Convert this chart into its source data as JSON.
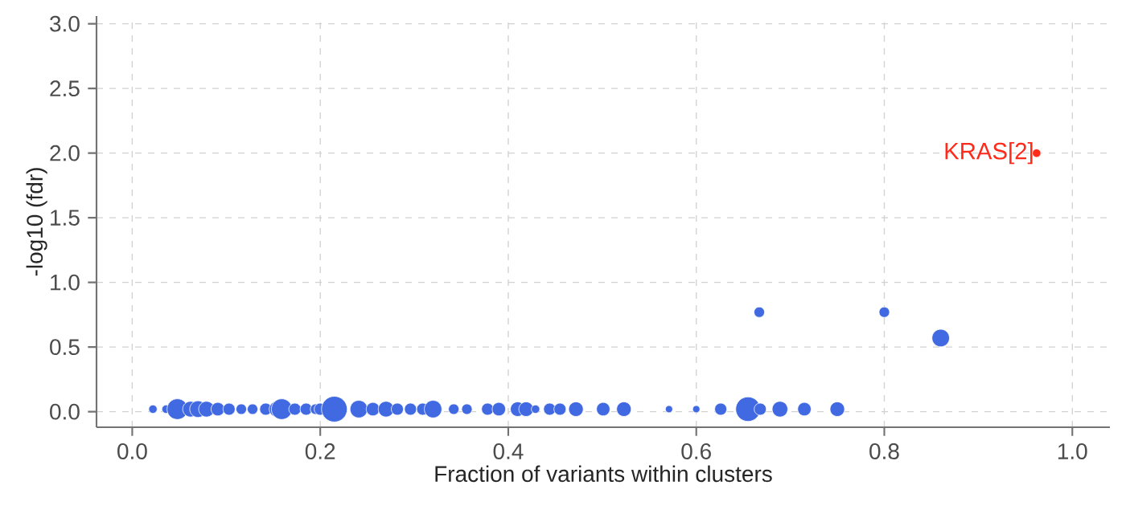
{
  "chart_data": {
    "type": "bubble",
    "xlabel": "Fraction of variants within clusters",
    "ylabel": "-log10 (fdr)",
    "xlim": [
      -0.038,
      1.04
    ],
    "ylim": [
      -0.12,
      3.06
    ],
    "xticks": [
      {
        "value": 0,
        "label": "0.0"
      },
      {
        "value": 0.2,
        "label": "0.2"
      },
      {
        "value": 0.4,
        "label": "0.4"
      },
      {
        "value": 0.6,
        "label": "0.6"
      },
      {
        "value": 0.8,
        "label": "0.8"
      },
      {
        "value": 1,
        "label": "1.0"
      }
    ],
    "yticks": [
      {
        "value": 0,
        "label": "0.0"
      },
      {
        "value": 0.5,
        "label": "0.5"
      },
      {
        "value": 1,
        "label": "1.0"
      },
      {
        "value": 1.5,
        "label": "1.5"
      },
      {
        "value": 2,
        "label": "2.0"
      },
      {
        "value": 2.5,
        "label": "2.5"
      },
      {
        "value": 3,
        "label": "3.0"
      }
    ],
    "grid": true,
    "series": [
      {
        "color": "#4169e1",
        "x": [
          0.022,
          0.036,
          0.048,
          0.062,
          0.07,
          0.079,
          0.091,
          0.103,
          0.116,
          0.128,
          0.142,
          0.154,
          0.159,
          0.173,
          0.185,
          0.195,
          0.2,
          0.215,
          0.241,
          0.256,
          0.27,
          0.282,
          0.296,
          0.309,
          0.32,
          0.342,
          0.356,
          0.378,
          0.39,
          0.41,
          0.419,
          0.429,
          0.444,
          0.455,
          0.472,
          0.501,
          0.523,
          0.571,
          0.6,
          0.626,
          0.655,
          0.668,
          0.689,
          0.715,
          0.75,
          0.667,
          0.8,
          0.86
        ],
        "values": [
          0.02,
          0.02,
          0.02,
          0.02,
          0.02,
          0.02,
          0.02,
          0.02,
          0.02,
          0.02,
          0.02,
          0.02,
          0.02,
          0.02,
          0.02,
          0.02,
          0.02,
          0.02,
          0.02,
          0.02,
          0.02,
          0.02,
          0.02,
          0.02,
          0.02,
          0.02,
          0.02,
          0.02,
          0.02,
          0.02,
          0.02,
          0.02,
          0.02,
          0.02,
          0.02,
          0.02,
          0.02,
          0.02,
          0.02,
          0.02,
          0.02,
          0.02,
          0.02,
          0.02,
          0.02,
          0.77,
          0.77,
          0.57
        ],
        "sizes": [
          0.05,
          0.05,
          0.6,
          0.3,
          0.35,
          0.3,
          0.2,
          0.15,
          0.1,
          0.1,
          0.15,
          0.3,
          0.6,
          0.15,
          0.15,
          0.1,
          0.15,
          1,
          0.4,
          0.2,
          0.3,
          0.15,
          0.15,
          0.15,
          0.4,
          0.1,
          0.1,
          0.15,
          0.2,
          0.25,
          0.25,
          0.05,
          0.15,
          0.15,
          0.25,
          0.2,
          0.25,
          0.03,
          0.03,
          0.15,
          0.9,
          0.15,
          0.3,
          0.2,
          0.25,
          0.1,
          0.1,
          0.4
        ]
      },
      {
        "color": "#ff2a1a",
        "x": [
          0.962
        ],
        "values": [
          2.0
        ],
        "sizes": [
          0.05
        ]
      }
    ],
    "annotations": [
      {
        "text": "KRAS[2]",
        "x": 0.962,
        "y": 2.0
      }
    ]
  }
}
